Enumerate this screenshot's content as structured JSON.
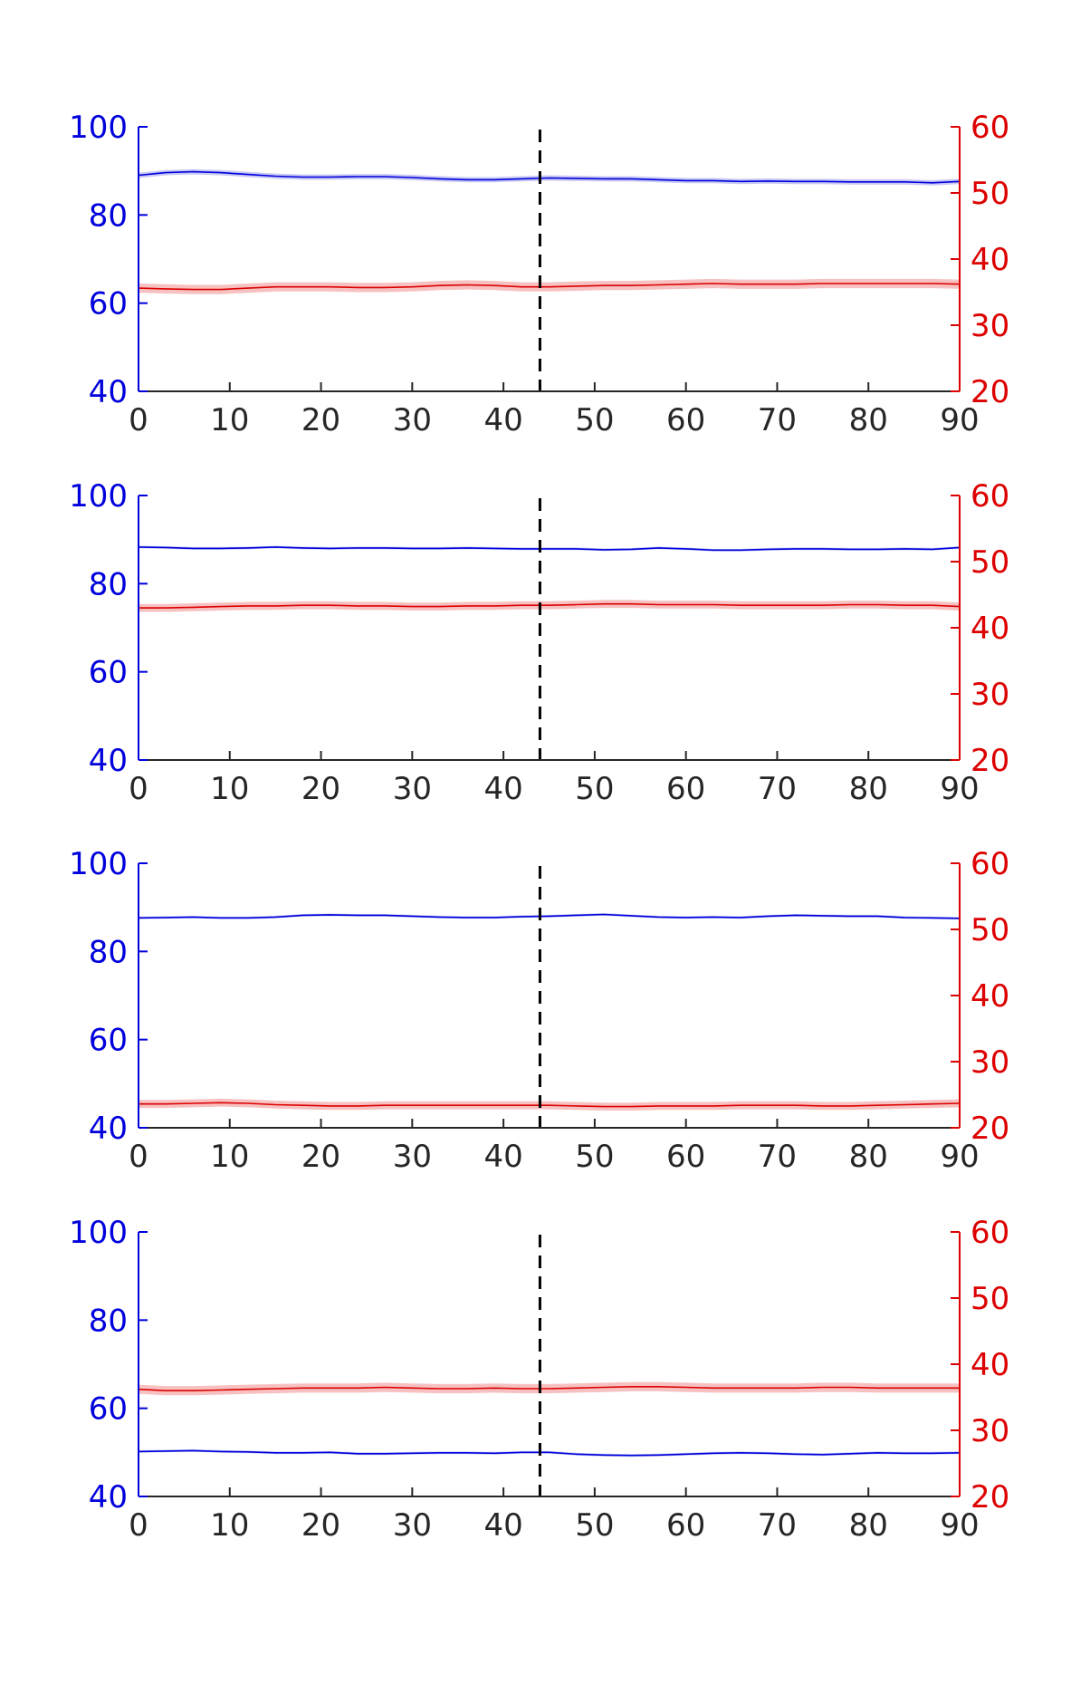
{
  "colors": {
    "left_axis": "#0000dd",
    "right_axis": "#dd0000",
    "bottom_axis": "#262626",
    "blue_series": "#0000dd",
    "red_series": "#dd0000",
    "red_band": "#f4a6a6",
    "blue_band": "#b0b0ee",
    "marker_line": "#000000"
  },
  "chart_data": [
    {
      "type": "line",
      "xlim": [
        0,
        90
      ],
      "x_ticks": [
        "0",
        "10",
        "20",
        "30",
        "40",
        "50",
        "60",
        "70",
        "80",
        "90"
      ],
      "ylim_left": [
        40,
        100
      ],
      "y_ticks_left": [
        "40",
        "60",
        "80",
        "100"
      ],
      "ylim_right": [
        20,
        60
      ],
      "y_ticks_right": [
        "20",
        "30",
        "40",
        "50",
        "60"
      ],
      "vline_x": 44,
      "grid": false,
      "series": [
        {
          "axis": "left",
          "color": "blue",
          "band": 0.6,
          "x": [
            0,
            3,
            6,
            9,
            12,
            15,
            18,
            21,
            24,
            27,
            30,
            33,
            36,
            39,
            42,
            45,
            48,
            51,
            54,
            57,
            60,
            63,
            66,
            69,
            72,
            75,
            78,
            81,
            84,
            87,
            90
          ],
          "y": [
            89.0,
            89.6,
            89.8,
            89.6,
            89.2,
            88.8,
            88.6,
            88.6,
            88.7,
            88.7,
            88.5,
            88.2,
            88.0,
            88.0,
            88.2,
            88.4,
            88.3,
            88.2,
            88.2,
            88.0,
            87.8,
            87.8,
            87.6,
            87.7,
            87.6,
            87.6,
            87.5,
            87.5,
            87.5,
            87.3,
            87.6
          ]
        },
        {
          "axis": "right",
          "color": "red",
          "band": 0.7,
          "x": [
            0,
            3,
            6,
            9,
            12,
            15,
            18,
            21,
            24,
            27,
            30,
            33,
            36,
            39,
            42,
            45,
            48,
            51,
            54,
            57,
            60,
            63,
            66,
            69,
            72,
            75,
            78,
            81,
            84,
            87,
            90
          ],
          "y": [
            35.6,
            35.5,
            35.4,
            35.4,
            35.6,
            35.8,
            35.8,
            35.8,
            35.7,
            35.7,
            35.8,
            36.0,
            36.1,
            36.0,
            35.8,
            35.8,
            35.9,
            36.0,
            36.0,
            36.1,
            36.2,
            36.3,
            36.2,
            36.2,
            36.2,
            36.3,
            36.3,
            36.3,
            36.3,
            36.3,
            36.2
          ]
        }
      ]
    },
    {
      "type": "line",
      "xlim": [
        0,
        90
      ],
      "x_ticks": [
        "0",
        "10",
        "20",
        "30",
        "40",
        "50",
        "60",
        "70",
        "80",
        "90"
      ],
      "ylim_left": [
        40,
        100
      ],
      "y_ticks_left": [
        "40",
        "60",
        "80",
        "100"
      ],
      "ylim_right": [
        20,
        60
      ],
      "y_ticks_right": [
        "20",
        "30",
        "40",
        "50",
        "60"
      ],
      "vline_x": 44,
      "grid": false,
      "series": [
        {
          "axis": "left",
          "color": "blue",
          "band": 0.3,
          "x": [
            0,
            3,
            6,
            9,
            12,
            15,
            18,
            21,
            24,
            27,
            30,
            33,
            36,
            39,
            42,
            45,
            48,
            51,
            54,
            57,
            60,
            63,
            66,
            69,
            72,
            75,
            78,
            81,
            84,
            87,
            90
          ],
          "y": [
            88.3,
            88.2,
            88.0,
            88.0,
            88.1,
            88.3,
            88.1,
            88.0,
            88.1,
            88.1,
            88.0,
            88.0,
            88.1,
            88.0,
            87.9,
            87.9,
            87.9,
            87.7,
            87.8,
            88.1,
            87.9,
            87.6,
            87.6,
            87.8,
            87.9,
            87.9,
            87.8,
            87.8,
            87.9,
            87.8,
            88.2
          ]
        },
        {
          "axis": "right",
          "color": "red",
          "band": 0.6,
          "x": [
            0,
            3,
            6,
            9,
            12,
            15,
            18,
            21,
            24,
            27,
            30,
            33,
            36,
            39,
            42,
            45,
            48,
            51,
            54,
            57,
            60,
            63,
            66,
            69,
            72,
            75,
            78,
            81,
            84,
            87,
            90
          ],
          "y": [
            43.0,
            43.0,
            43.1,
            43.2,
            43.3,
            43.3,
            43.4,
            43.4,
            43.3,
            43.3,
            43.2,
            43.2,
            43.3,
            43.3,
            43.4,
            43.4,
            43.5,
            43.6,
            43.6,
            43.5,
            43.5,
            43.5,
            43.4,
            43.4,
            43.4,
            43.4,
            43.5,
            43.5,
            43.4,
            43.4,
            43.2
          ]
        }
      ]
    },
    {
      "type": "line",
      "xlim": [
        0,
        90
      ],
      "x_ticks": [
        "0",
        "10",
        "20",
        "30",
        "40",
        "50",
        "60",
        "70",
        "80",
        "90"
      ],
      "ylim_left": [
        40,
        100
      ],
      "y_ticks_left": [
        "40",
        "60",
        "80",
        "100"
      ],
      "ylim_right": [
        20,
        60
      ],
      "y_ticks_right": [
        "20",
        "30",
        "40",
        "50",
        "60"
      ],
      "vline_x": 44,
      "grid": false,
      "series": [
        {
          "axis": "left",
          "color": "blue",
          "band": 0.3,
          "x": [
            0,
            3,
            6,
            9,
            12,
            15,
            18,
            21,
            24,
            27,
            30,
            33,
            36,
            39,
            42,
            45,
            48,
            51,
            54,
            57,
            60,
            63,
            66,
            69,
            72,
            75,
            78,
            81,
            84,
            87,
            90
          ],
          "y": [
            87.6,
            87.7,
            87.8,
            87.6,
            87.6,
            87.8,
            88.2,
            88.3,
            88.2,
            88.2,
            88.0,
            87.8,
            87.7,
            87.7,
            87.9,
            88.0,
            88.2,
            88.4,
            88.1,
            87.8,
            87.7,
            87.8,
            87.7,
            88.0,
            88.2,
            88.1,
            88.0,
            88.0,
            87.7,
            87.6,
            87.5
          ]
        },
        {
          "axis": "right",
          "color": "red",
          "band": 0.6,
          "x": [
            0,
            3,
            6,
            9,
            12,
            15,
            18,
            21,
            24,
            27,
            30,
            33,
            36,
            39,
            42,
            45,
            48,
            51,
            54,
            57,
            60,
            63,
            66,
            69,
            72,
            75,
            78,
            81,
            84,
            87,
            90
          ],
          "y": [
            23.6,
            23.6,
            23.7,
            23.8,
            23.7,
            23.5,
            23.4,
            23.3,
            23.3,
            23.4,
            23.4,
            23.4,
            23.4,
            23.4,
            23.4,
            23.4,
            23.3,
            23.2,
            23.2,
            23.3,
            23.3,
            23.3,
            23.4,
            23.4,
            23.4,
            23.3,
            23.3,
            23.4,
            23.5,
            23.6,
            23.7
          ]
        }
      ]
    },
    {
      "type": "line",
      "xlim": [
        0,
        90
      ],
      "x_ticks": [
        "0",
        "10",
        "20",
        "30",
        "40",
        "50",
        "60",
        "70",
        "80",
        "90"
      ],
      "ylim_left": [
        40,
        100
      ],
      "y_ticks_left": [
        "40",
        "60",
        "80",
        "100"
      ],
      "ylim_right": [
        20,
        60
      ],
      "y_ticks_right": [
        "20",
        "30",
        "40",
        "50",
        "60"
      ],
      "vline_x": 44,
      "grid": false,
      "series": [
        {
          "axis": "left",
          "color": "blue",
          "band": 0.3,
          "x": [
            0,
            3,
            6,
            9,
            12,
            15,
            18,
            21,
            24,
            27,
            30,
            33,
            36,
            39,
            42,
            45,
            48,
            51,
            54,
            57,
            60,
            63,
            66,
            69,
            72,
            75,
            78,
            81,
            84,
            87,
            90
          ],
          "y": [
            50.2,
            50.3,
            50.4,
            50.2,
            50.1,
            49.9,
            49.9,
            50.0,
            49.7,
            49.7,
            49.8,
            49.9,
            49.9,
            49.8,
            50.0,
            50.0,
            49.6,
            49.4,
            49.3,
            49.4,
            49.6,
            49.8,
            49.9,
            49.8,
            49.6,
            49.5,
            49.7,
            49.9,
            49.8,
            49.8,
            49.9
          ]
        },
        {
          "axis": "right",
          "color": "red",
          "band": 0.7,
          "x": [
            0,
            3,
            6,
            9,
            12,
            15,
            18,
            21,
            24,
            27,
            30,
            33,
            36,
            39,
            42,
            45,
            48,
            51,
            54,
            57,
            60,
            63,
            66,
            69,
            72,
            75,
            78,
            81,
            84,
            87,
            90
          ],
          "y": [
            36.2,
            36.0,
            36.0,
            36.1,
            36.2,
            36.3,
            36.4,
            36.4,
            36.4,
            36.5,
            36.4,
            36.3,
            36.3,
            36.4,
            36.3,
            36.3,
            36.4,
            36.5,
            36.6,
            36.6,
            36.5,
            36.4,
            36.4,
            36.4,
            36.4,
            36.5,
            36.5,
            36.4,
            36.4,
            36.4,
            36.4
          ]
        }
      ]
    }
  ]
}
